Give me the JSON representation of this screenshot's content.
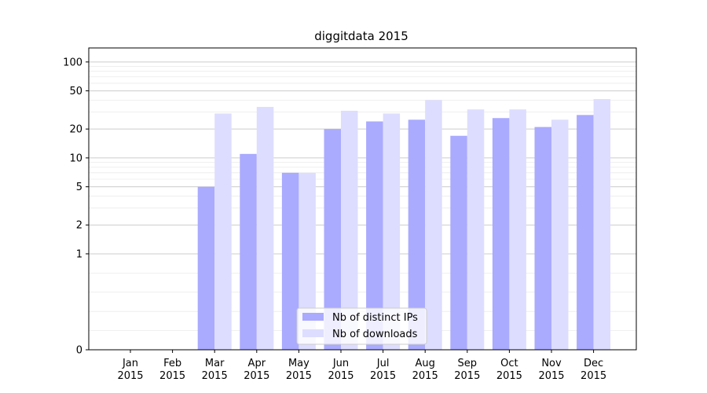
{
  "chart_data": {
    "type": "bar",
    "title": "diggitdata 2015",
    "categories": [
      [
        "Jan",
        "2015"
      ],
      [
        "Feb",
        "2015"
      ],
      [
        "Mar",
        "2015"
      ],
      [
        "Apr",
        "2015"
      ],
      [
        "May",
        "2015"
      ],
      [
        "Jun",
        "2015"
      ],
      [
        "Jul",
        "2015"
      ],
      [
        "Aug",
        "2015"
      ],
      [
        "Sep",
        "2015"
      ],
      [
        "Oct",
        "2015"
      ],
      [
        "Nov",
        "2015"
      ],
      [
        "Dec",
        "2015"
      ]
    ],
    "series": [
      {
        "name": "Nb of distinct IPs",
        "color": "#aaaaff",
        "values": [
          0,
          0,
          5,
          11,
          7,
          20,
          24,
          25,
          17,
          26,
          21,
          28
        ]
      },
      {
        "name": "Nb of downloads",
        "color": "#ddddff",
        "values": [
          0,
          0,
          29,
          34,
          7,
          31,
          29,
          40,
          32,
          32,
          25,
          41
        ]
      }
    ],
    "y_scale": "symlog",
    "y_ticks": [
      0,
      1,
      2,
      5,
      10,
      20,
      50,
      100
    ],
    "ylim": [
      0,
      140
    ],
    "grid": true,
    "legend_position": "bottom-center"
  }
}
